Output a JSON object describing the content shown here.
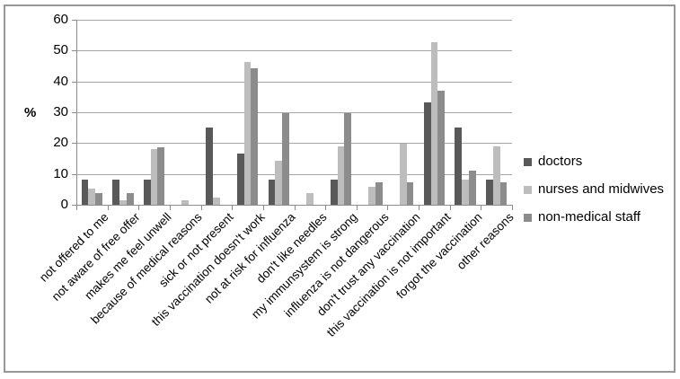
{
  "chart_data": {
    "type": "bar",
    "title": "",
    "ylabel": "%",
    "xlabel": "",
    "ylim": [
      0,
      60
    ],
    "yticks": [
      0,
      10,
      20,
      30,
      40,
      50,
      60
    ],
    "grid": true,
    "legend_position": "right",
    "categories": [
      "not offered to me",
      "not aware of free offer",
      "makes me feel unwell",
      "because of medical reasons",
      "sick or not present",
      "this vaccination doesn't work",
      "not at risk for influenza",
      "don't like needles",
      "my immunsystem is strong",
      "influenza is not dangerous",
      "don't trust any vaccination",
      "this vaccination is not important",
      "forgot the vaccination",
      "other reasons"
    ],
    "series": [
      {
        "name": "doctors",
        "color": "#595959",
        "values": [
          8.3,
          8.3,
          8.3,
          0,
          25,
          16.7,
          8.3,
          0,
          8.3,
          0,
          0,
          33.3,
          25,
          8.3
        ]
      },
      {
        "name": "nurses and midwives",
        "color": "#bdbdbd",
        "values": [
          5.2,
          1.5,
          18.0,
          1.5,
          2.2,
          46.3,
          14.3,
          3.7,
          19.0,
          5.9,
          19.9,
          52.6,
          8.2,
          18.8
        ]
      },
      {
        "name": "non-medical staff",
        "color": "#8c8c8c",
        "values": [
          3.7,
          3.7,
          18.5,
          0,
          0,
          44.4,
          29.6,
          0,
          29.6,
          7.4,
          7.4,
          37.0,
          11.1,
          7.4
        ]
      }
    ]
  },
  "colors": {
    "gridline": "#a6a6a6",
    "axis": "#8c8c8c",
    "frame_border": "#979797",
    "background": "#ffffff",
    "text": "#000000"
  }
}
